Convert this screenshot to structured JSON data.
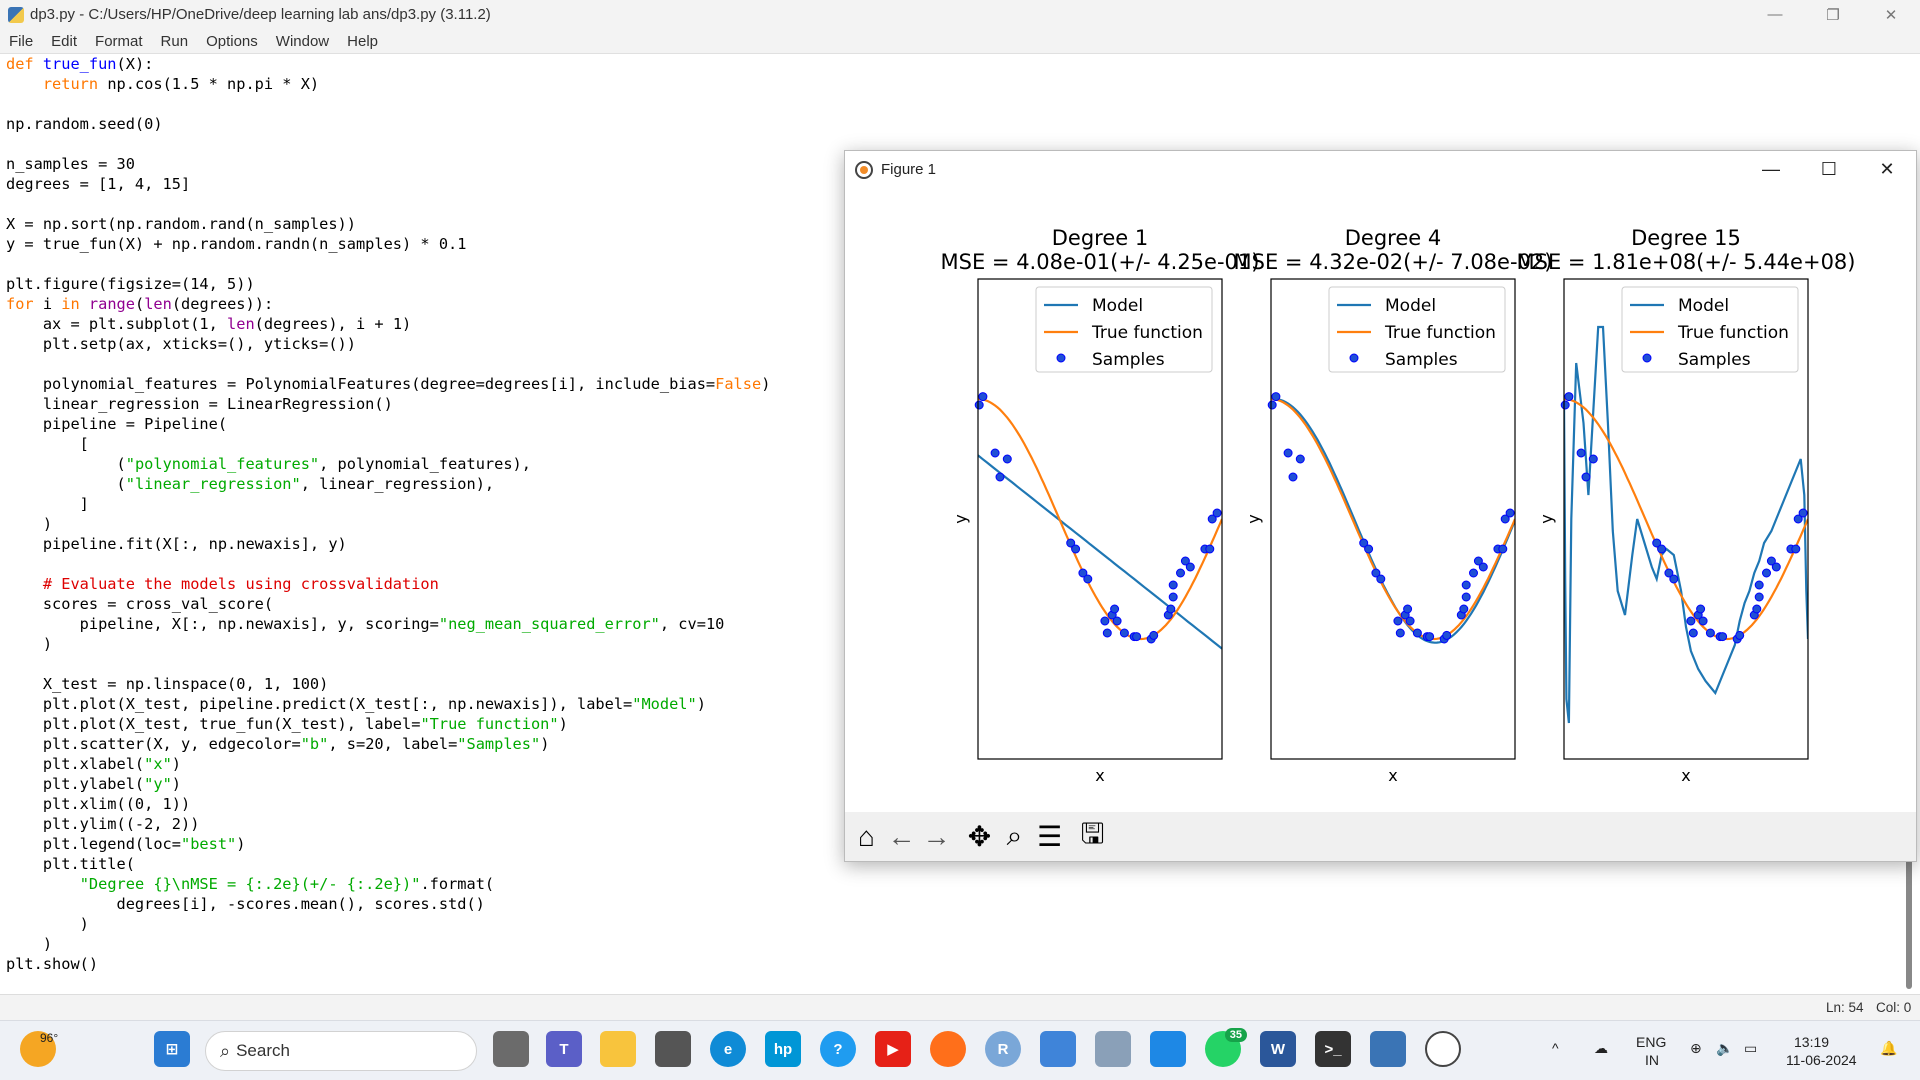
{
  "idle": {
    "title": "dp3.py - C:/Users/HP/OneDrive/deep learning lab ans/dp3.py (3.11.2)",
    "menu": [
      "File",
      "Edit",
      "Format",
      "Run",
      "Options",
      "Window",
      "Help"
    ],
    "status_line": "Ln: 54",
    "status_col": "Col: 0",
    "code_lines": [
      [
        [
          "kw",
          "def "
        ],
        [
          "fn",
          "true_fun"
        ],
        [
          "",
          "(X):"
        ]
      ],
      [
        [
          "",
          "    "
        ],
        [
          "kw",
          "return"
        ],
        [
          "",
          " np.cos(1.5 * np.pi * X)"
        ]
      ],
      [
        [
          "",
          ""
        ]
      ],
      [
        [
          "",
          "np.random.seed(0)"
        ]
      ],
      [
        [
          "",
          ""
        ]
      ],
      [
        [
          "",
          "n_samples = 30"
        ]
      ],
      [
        [
          "",
          "degrees = [1, 4, 15]"
        ]
      ],
      [
        [
          "",
          ""
        ]
      ],
      [
        [
          "",
          "X = np.sort(np.random.rand(n_samples))"
        ]
      ],
      [
        [
          "",
          "y = true_fun(X) + np.random.randn(n_samples) * 0.1"
        ]
      ],
      [
        [
          "",
          ""
        ]
      ],
      [
        [
          "",
          "plt.figure(figsize=(14, 5))"
        ]
      ],
      [
        [
          "kw",
          "for"
        ],
        [
          "",
          " i "
        ],
        [
          "kw",
          "in"
        ],
        [
          "",
          " "
        ],
        [
          "bi",
          "range"
        ],
        [
          "",
          "("
        ],
        [
          "bi",
          "len"
        ],
        [
          "",
          "(degrees)):"
        ]
      ],
      [
        [
          "",
          "    ax = plt.subplot(1, "
        ],
        [
          "bi",
          "len"
        ],
        [
          "",
          "(degrees), i + 1)"
        ]
      ],
      [
        [
          "",
          "    plt.setp(ax, xticks=(), yticks=())"
        ]
      ],
      [
        [
          "",
          ""
        ]
      ],
      [
        [
          "",
          "    polynomial_features = PolynomialFeatures(degree=degrees[i], include_bias="
        ],
        [
          "kw",
          "False"
        ],
        [
          "",
          ")"
        ]
      ],
      [
        [
          "",
          "    linear_regression = LinearRegression()"
        ]
      ],
      [
        [
          "",
          "    pipeline = Pipeline("
        ]
      ],
      [
        [
          "",
          "        ["
        ]
      ],
      [
        [
          "",
          "            ("
        ],
        [
          "str",
          "\"polynomial_features\""
        ],
        [
          "",
          ", polynomial_features),"
        ]
      ],
      [
        [
          "",
          "            ("
        ],
        [
          "str",
          "\"linear_regression\""
        ],
        [
          "",
          ", linear_regression),"
        ]
      ],
      [
        [
          "",
          "        ]"
        ]
      ],
      [
        [
          "",
          "    )"
        ]
      ],
      [
        [
          "",
          "    pipeline.fit(X[:, np.newaxis], y)"
        ]
      ],
      [
        [
          "",
          ""
        ]
      ],
      [
        [
          "",
          "    "
        ],
        [
          "cm",
          "# Evaluate the models using crossvalidation"
        ]
      ],
      [
        [
          "",
          "    scores = cross_val_score("
        ]
      ],
      [
        [
          "",
          "        pipeline, X[:, np.newaxis], y, scoring="
        ],
        [
          "str",
          "\"neg_mean_squared_error\""
        ],
        [
          "",
          ", cv=10"
        ]
      ],
      [
        [
          "",
          "    )"
        ]
      ],
      [
        [
          "",
          ""
        ]
      ],
      [
        [
          "",
          "    X_test = np.linspace(0, 1, 100)"
        ]
      ],
      [
        [
          "",
          "    plt.plot(X_test, pipeline.predict(X_test[:, np.newaxis]), label="
        ],
        [
          "str",
          "\"Model\""
        ],
        [
          "",
          ")"
        ]
      ],
      [
        [
          "",
          "    plt.plot(X_test, true_fun(X_test), label="
        ],
        [
          "str",
          "\"True function\""
        ],
        [
          "",
          ")"
        ]
      ],
      [
        [
          "",
          "    plt.scatter(X, y, edgecolor="
        ],
        [
          "str",
          "\"b\""
        ],
        [
          "",
          ", s=20, label="
        ],
        [
          "str",
          "\"Samples\""
        ],
        [
          "",
          ")"
        ]
      ],
      [
        [
          "",
          "    plt.xlabel("
        ],
        [
          "str",
          "\"x\""
        ],
        [
          "",
          ")"
        ]
      ],
      [
        [
          "",
          "    plt.ylabel("
        ],
        [
          "str",
          "\"y\""
        ],
        [
          "",
          ")"
        ]
      ],
      [
        [
          "",
          "    plt.xlim((0, 1))"
        ]
      ],
      [
        [
          "",
          "    plt.ylim((-2, 2))"
        ]
      ],
      [
        [
          "",
          "    plt.legend(loc="
        ],
        [
          "str",
          "\"best\""
        ],
        [
          "",
          ")"
        ]
      ],
      [
        [
          "",
          "    plt.title("
        ]
      ],
      [
        [
          "",
          "        "
        ],
        [
          "str",
          "\"Degree {}\\nMSE = {:.2e}(+/- {:.2e})\""
        ],
        [
          "",
          ".format("
        ]
      ],
      [
        [
          "",
          "            degrees[i], -scores.mean(), scores.std()"
        ]
      ],
      [
        [
          "",
          "        )"
        ]
      ],
      [
        [
          "",
          "    )"
        ]
      ],
      [
        [
          "",
          "plt.show()"
        ]
      ]
    ]
  },
  "figure": {
    "window_title": "Figure 1",
    "toolbar": [
      "home-icon",
      "back-arrow-icon",
      "forward-arrow-icon",
      "pan-icon",
      "zoom-icon",
      "configure-subplots-icon",
      "save-icon"
    ]
  },
  "chart_data": [
    {
      "type": "line",
      "title": "Degree 1",
      "subtitle": "MSE = 4.08e-01(+/- 4.25e-01)",
      "xlabel": "x",
      "ylabel": "y",
      "xlim": [
        0,
        1
      ],
      "ylim": [
        -2,
        2
      ],
      "legend": [
        "Model",
        "True function",
        "Samples"
      ],
      "legend_position": "top-right",
      "model": {
        "kind": "poly",
        "coef": [
          0.53,
          -1.61
        ]
      },
      "colors": {
        "model": "#1f77b4",
        "true": "#ff7f0e",
        "samples": "#0000ff"
      }
    },
    {
      "type": "line",
      "title": "Degree 4",
      "subtitle": "MSE = 4.32e-02(+/- 7.08e-02)",
      "xlabel": "x",
      "ylabel": "y",
      "xlim": [
        0,
        1
      ],
      "ylim": [
        -2,
        2
      ],
      "legend": [
        "Model",
        "True function",
        "Samples"
      ],
      "legend_position": "top-right",
      "model": {
        "kind": "true_offset",
        "offset": 0.04
      },
      "colors": {
        "model": "#1f77b4",
        "true": "#ff7f0e",
        "samples": "#0000ff"
      }
    },
    {
      "type": "line",
      "title": "Degree 15",
      "subtitle": "MSE = 1.81e+08(+/- 5.44e+08)",
      "xlabel": "x",
      "ylabel": "y",
      "xlim": [
        0,
        1
      ],
      "ylim": [
        -2,
        2
      ],
      "legend": [
        "Model",
        "True function",
        "Samples"
      ],
      "legend_position": "top-right",
      "model": {
        "kind": "points",
        "x": [
          0.0,
          0.005,
          0.01,
          0.02,
          0.03,
          0.05,
          0.08,
          0.1,
          0.12,
          0.14,
          0.16,
          0.18,
          0.2,
          0.22,
          0.25,
          0.28,
          0.3,
          0.33,
          0.36,
          0.38,
          0.4,
          0.42,
          0.45,
          0.48,
          0.5,
          0.52,
          0.55,
          0.58,
          0.6,
          0.62,
          0.65,
          0.67,
          0.7,
          0.72,
          0.74,
          0.76,
          0.78,
          0.8,
          0.82,
          0.85,
          0.88,
          0.9,
          0.93,
          0.95,
          0.97,
          0.985,
          0.993,
          1.0
        ],
        "y": [
          1.0,
          -0.5,
          -1.5,
          -1.7,
          0.0,
          1.3,
          0.8,
          0.2,
          0.9,
          1.6,
          1.6,
          0.8,
          -0.1,
          -0.6,
          -0.8,
          -0.3,
          0.0,
          -0.2,
          -0.4,
          -0.5,
          -0.3,
          -0.25,
          -0.3,
          -0.6,
          -0.9,
          -1.1,
          -1.25,
          -1.35,
          -1.4,
          -1.45,
          -1.3,
          -1.2,
          -1.05,
          -0.85,
          -0.7,
          -0.6,
          -0.45,
          -0.35,
          -0.2,
          -0.1,
          0.05,
          0.15,
          0.3,
          0.4,
          0.5,
          0.2,
          -0.6,
          -1.0
        ]
      },
      "colors": {
        "model": "#1f77b4",
        "true": "#ff7f0e",
        "samples": "#0000ff"
      }
    }
  ],
  "samples": {
    "x": [
      0.005,
      0.02,
      0.07,
      0.09,
      0.12,
      0.38,
      0.4,
      0.43,
      0.45,
      0.52,
      0.53,
      0.55,
      0.56,
      0.57,
      0.6,
      0.64,
      0.65,
      0.71,
      0.72,
      0.78,
      0.79,
      0.8,
      0.8,
      0.83,
      0.85,
      0.87,
      0.93,
      0.95,
      0.96,
      0.98
    ],
    "y": [
      0.95,
      1.02,
      0.55,
      0.35,
      0.5,
      -0.2,
      -0.25,
      -0.45,
      -0.5,
      -0.85,
      -0.95,
      -0.8,
      -0.75,
      -0.85,
      -0.95,
      -0.98,
      -0.98,
      -1.0,
      -0.97,
      -0.8,
      -0.75,
      -0.65,
      -0.55,
      -0.45,
      -0.35,
      -0.4,
      -0.25,
      -0.25,
      0.0,
      0.05
    ]
  },
  "taskbar": {
    "weather": "96°",
    "search_placeholder": "Search",
    "whatsapp_badge": "35",
    "lang": "ENG",
    "region": "IN",
    "time": "13:19",
    "date": "11-06-2024",
    "apps": [
      "start-icon",
      "search-icon",
      "task-view-icon",
      "teams-icon",
      "file-explorer-icon",
      "camera-icon",
      "edge-icon",
      "hp-icon",
      "help-icon",
      "youtube-icon",
      "firefox-icon",
      "r-icon",
      "notepad-icon",
      "virtualbox-icon",
      "vmware-icon",
      "whatsapp-icon",
      "word-icon",
      "terminal-icon",
      "python-idle-icon",
      "matplotlib-icon"
    ]
  }
}
